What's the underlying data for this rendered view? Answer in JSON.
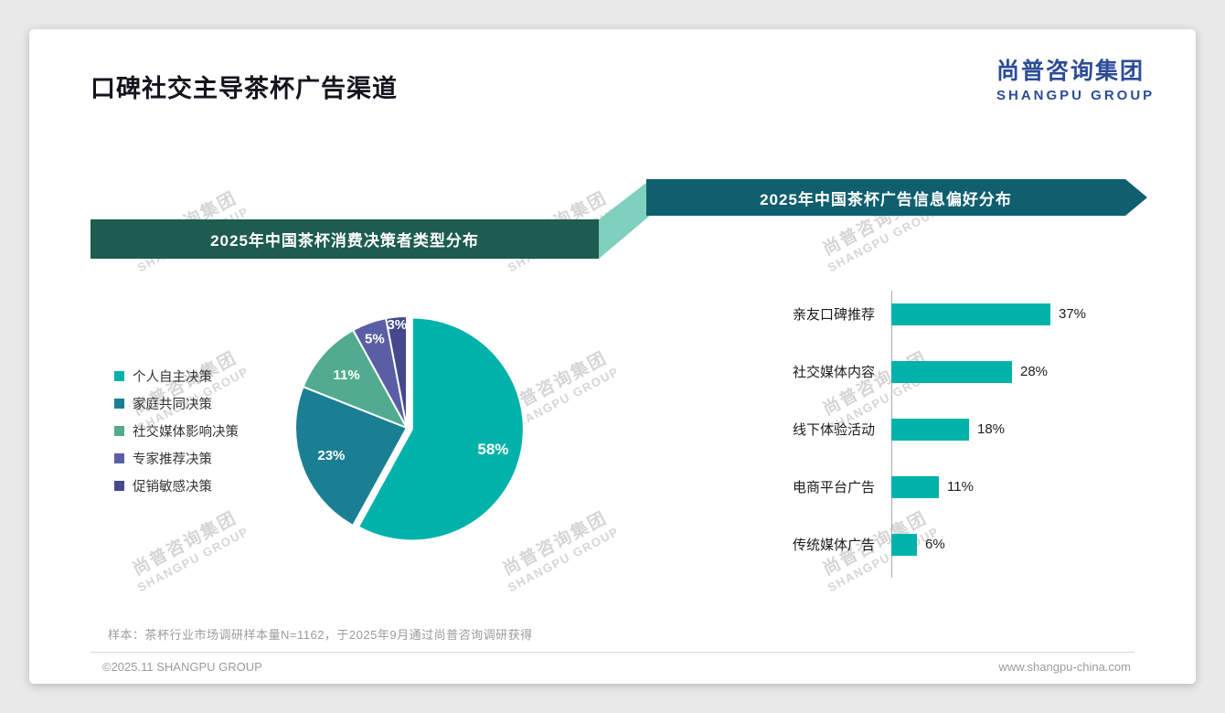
{
  "page": {
    "title": "口碑社交主导茶杯广告渠道",
    "logo": {
      "cn": "尚普咨询集团",
      "en": "SHANGPU GROUP"
    },
    "watermark": {
      "cn": "尚普咨询集团",
      "en": "SHANGPU GROUP"
    },
    "footer": {
      "sample_note": "样本：茶杯行业市场调研样本量N=1162，于2025年9月通过尚普咨询调研获得",
      "copyright": "©2025.11 SHANGPU GROUP",
      "website": "www.shangpu-china.com"
    }
  },
  "colors": {
    "accent_teal": "#00b2a9",
    "banner_left_bg": "#1e5b50",
    "banner_right_bg": "#0f5f6e",
    "banner_connector_bg": "#7fd0bd",
    "logo_blue": "#2c4d97"
  },
  "chart_data": [
    {
      "type": "pie",
      "title": "2025年中国茶杯消费决策者类型分布",
      "labels": [
        "个人自主决策",
        "家庭共同决策",
        "社交媒体影响决策",
        "专家推荐决策",
        "促销敏感决策"
      ],
      "values": [
        58,
        23,
        11,
        5,
        3
      ],
      "unit": "%",
      "data_labels": [
        "58%",
        "23%",
        "11%",
        "5%",
        "3%"
      ],
      "colors": [
        "#00b2a9",
        "#1b7f93",
        "#52ab8e",
        "#5a5fa5",
        "#45498c"
      ],
      "legend_position": "left",
      "start_angle": "top",
      "direction": "clockwise"
    },
    {
      "type": "bar",
      "orientation": "horizontal",
      "title": "2025年中国茶杯广告信息偏好分布",
      "categories": [
        "亲友口碑推荐",
        "社交媒体内容",
        "线下体验活动",
        "电商平台广告",
        "传统媒体广告"
      ],
      "values": [
        37,
        28,
        18,
        11,
        6
      ],
      "unit": "%",
      "value_labels": [
        "37%",
        "28%",
        "18%",
        "11%",
        "6%"
      ],
      "bar_color": "#00b2a9",
      "xlim": [
        0,
        40
      ],
      "grid": false,
      "legend_position": "none"
    }
  ]
}
